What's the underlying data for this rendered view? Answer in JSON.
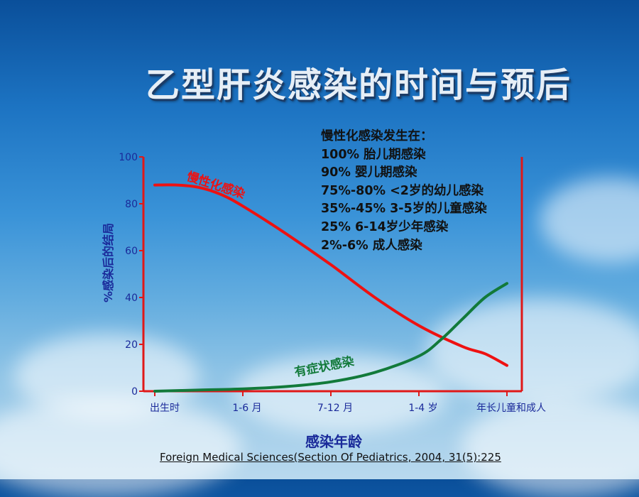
{
  "title": "乙型肝炎感染的时间与预后",
  "notes": {
    "heading": "慢性化感染发生在：",
    "items": [
      "100%  胎儿期感染",
      "90%  婴儿期感染",
      "75%-80% <2岁的幼儿感染",
      "35%-45% 3-5岁的儿童感染",
      "25% 6-14岁少年感染",
      "2%-6%  成人感染"
    ]
  },
  "citation": "Foreign Medical Sciences(Section Of Pediatrics, 2004, 31(5):225",
  "colors": {
    "chronic": "#ee1111",
    "symptomatic": "#127a3a",
    "axis": "#e01818",
    "ticks": "#1a2a9a"
  },
  "chart_data": {
    "type": "line",
    "xlabel": "感染年龄",
    "ylabel": "%感染后的结局",
    "categories": [
      "出生时",
      "1-6 月",
      "7-12 月",
      "1-4 岁",
      "年长儿童和成人"
    ],
    "ylim": [
      0,
      100
    ],
    "yticks": [
      0,
      20,
      40,
      60,
      80,
      100
    ],
    "series": [
      {
        "name": "慢性化感染",
        "x": [
          0,
          0.25,
          0.5,
          0.75,
          1,
          1.5,
          2,
          2.5,
          3,
          3.5,
          3.75,
          4
        ],
        "values": [
          88,
          88,
          87,
          84,
          79,
          67,
          54,
          40,
          28,
          19,
          16,
          11
        ]
      },
      {
        "name": "有症状感染",
        "x": [
          0,
          0.5,
          1,
          1.5,
          2,
          2.5,
          3,
          3.25,
          3.5,
          3.75,
          4
        ],
        "values": [
          0,
          0.5,
          1,
          2,
          4,
          8,
          15,
          22,
          31,
          40,
          46
        ]
      }
    ]
  }
}
